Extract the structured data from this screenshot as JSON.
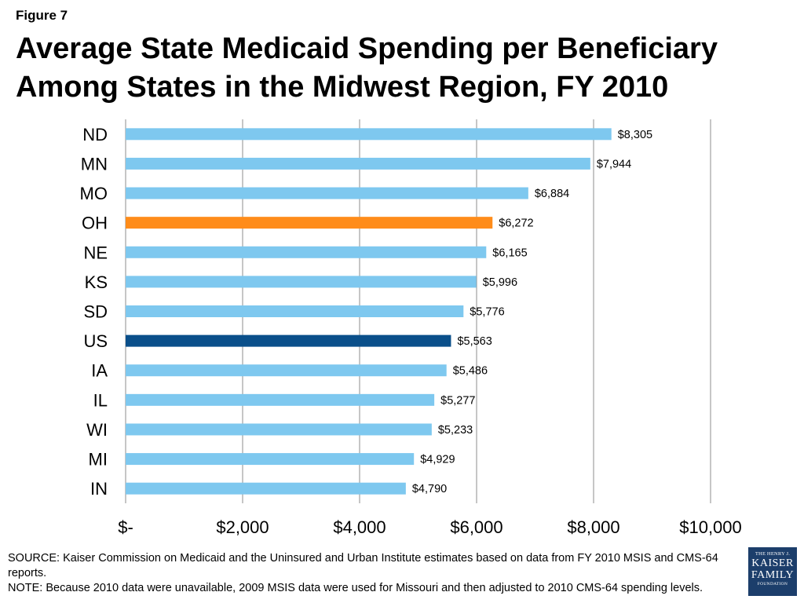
{
  "figure_label": "Figure 7",
  "title": "Average State Medicaid Spending per Beneficiary Among States in the Midwest Region, FY 2010",
  "chart_data": {
    "type": "bar",
    "orientation": "horizontal",
    "categories": [
      "ND",
      "MN",
      "MO",
      "OH",
      "NE",
      "KS",
      "SD",
      "US",
      "IA",
      "IL",
      "WI",
      "MI",
      "IN"
    ],
    "values": [
      8305,
      7944,
      6884,
      6272,
      6165,
      5996,
      5776,
      5563,
      5486,
      5277,
      5233,
      4929,
      4790
    ],
    "data_labels": [
      "$8,305",
      "$7,944",
      "$6,884",
      "$6,272",
      "$6,165",
      "$5,996",
      "$5,776",
      "$5,563",
      "$5,486",
      "$5,277",
      "$5,233",
      "$4,929",
      "$4,790"
    ],
    "highlight": {
      "OH": "#ff8c1a",
      "US": "#0a4f8a"
    },
    "default_color": "#7ec8ef",
    "xlim": [
      0,
      10000
    ],
    "x_ticks": [
      0,
      2000,
      4000,
      6000,
      8000,
      10000
    ],
    "x_tick_labels": [
      "$-",
      "$2,000",
      "$4,000",
      "$6,000",
      "$8,000",
      "$10,000"
    ],
    "grid": true,
    "xlabel": "",
    "ylabel": ""
  },
  "notes": {
    "source": "SOURCE: Kaiser Commission on Medicaid and the Uninsured and Urban Institute estimates based on data from FY 2010 MSIS and CMS-64 reports.",
    "note": "NOTE: Because 2010 data were unavailable, 2009 MSIS data were used for Missouri and then adjusted to 2010 CMS-64 spending levels."
  },
  "logo": {
    "line1": "THE HENRY J.",
    "line2": "KAISER",
    "line3": "FAMILY",
    "line4": "FOUNDATION"
  }
}
